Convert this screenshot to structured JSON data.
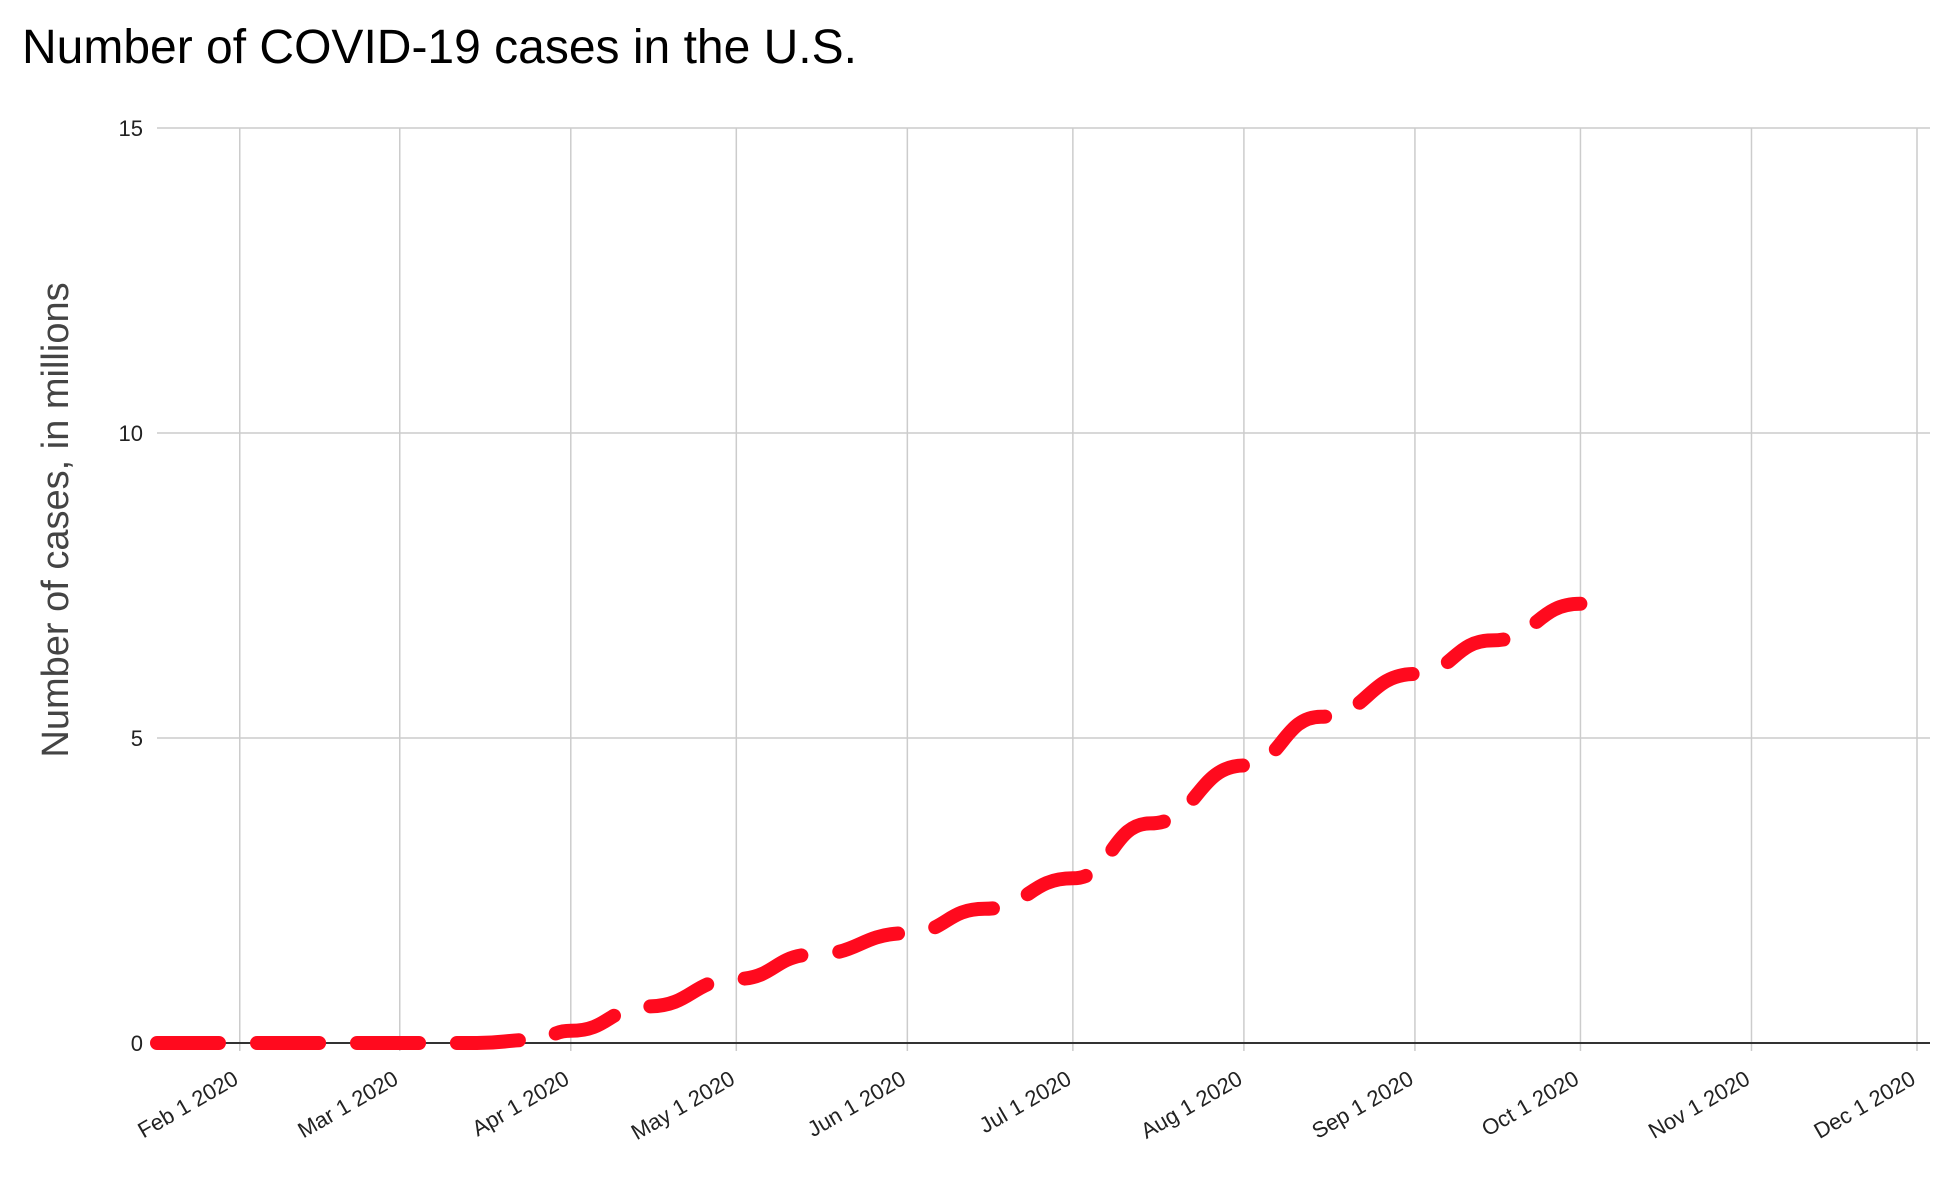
{
  "chart_data": {
    "type": "line",
    "title": "Number of COVID-19 cases in the U.S.",
    "xlabel": "",
    "ylabel": "Number of cases, in millions",
    "x_ticks": [
      "Feb 1 2020",
      "Mar 1 2020",
      "Apr 1 2020",
      "May 1 2020",
      "Jun 1 2020",
      "Jul 1 2020",
      "Aug 1 2020",
      "Sep 1 2020",
      "Oct 1 2020",
      "Nov 1 2020",
      "Dec 1 2020"
    ],
    "y_ticks": [
      "0",
      "5",
      "10",
      "15"
    ],
    "xlim": [
      "2020-01-17",
      "2020-12-01"
    ],
    "ylim": [
      0,
      15
    ],
    "grid": true,
    "line_style": "dashed",
    "series": [
      {
        "color": "#ff0a1e",
        "x": [
          "2020-01-17",
          "2020-02-01",
          "2020-02-15",
          "2020-03-01",
          "2020-03-15",
          "2020-03-25",
          "2020-04-01",
          "2020-04-15",
          "2020-05-01",
          "2020-05-15",
          "2020-06-01",
          "2020-06-15",
          "2020-07-01",
          "2020-07-15",
          "2020-08-01",
          "2020-08-15",
          "2020-09-01",
          "2020-09-15",
          "2020-10-01"
        ],
        "values": [
          0,
          0,
          0,
          0,
          0,
          0.05,
          0.2,
          0.6,
          1.05,
          1.45,
          1.8,
          2.2,
          2.7,
          3.6,
          4.55,
          5.35,
          6.05,
          6.6,
          7.2
        ]
      }
    ]
  }
}
